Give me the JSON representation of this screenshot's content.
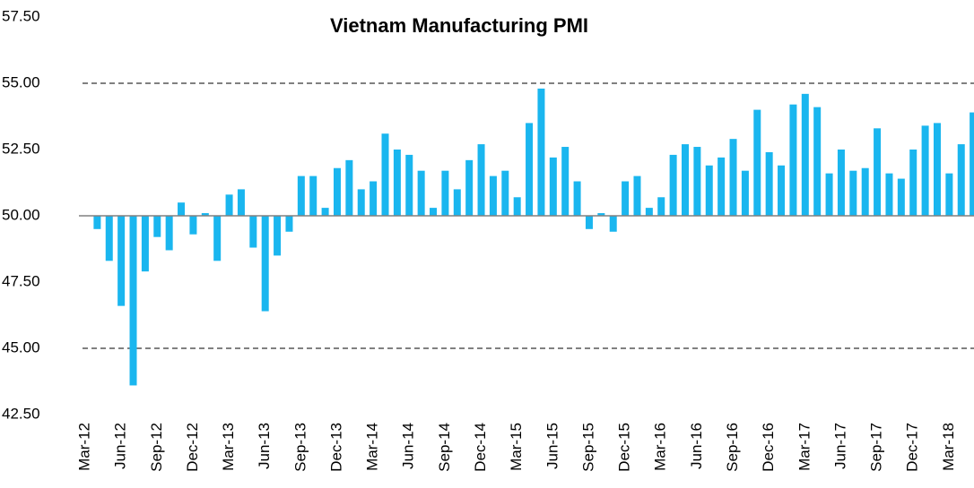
{
  "chart_data": {
    "type": "bar",
    "title": "Vietnam Manufacturing PMI",
    "color": "#1ab6ef",
    "categories": [
      "Mar-12",
      null,
      null,
      "Jun-12",
      null,
      null,
      "Sep-12",
      null,
      null,
      "Dec-12",
      null,
      null,
      "Mar-13",
      null,
      null,
      "Jun-13",
      null,
      null,
      "Sep-13",
      null,
      null,
      "Dec-13",
      null,
      null,
      "Mar-14",
      null,
      null,
      "Jun-14",
      null,
      null,
      "Sep-14",
      null,
      null,
      "Dec-14",
      null,
      null,
      "Mar-15",
      null,
      null,
      "Jun-15",
      null,
      null,
      "Sep-15",
      null,
      null,
      "Dec-15",
      null,
      null,
      "Mar-16",
      null,
      null,
      "Jun-16",
      null,
      null,
      "Sep-16",
      null,
      null,
      "Dec-16",
      null,
      null,
      "Mar-17",
      null,
      null,
      "Jun-17",
      null,
      null,
      "Sep-17",
      null,
      null,
      "Dec-17",
      null,
      null,
      "Mar-18",
      null,
      null
    ],
    "values": [
      null,
      49.5,
      48.3,
      46.6,
      43.6,
      47.9,
      49.2,
      48.7,
      50.5,
      49.3,
      50.1,
      48.3,
      50.8,
      51.0,
      48.8,
      46.4,
      48.5,
      49.4,
      51.5,
      51.5,
      50.3,
      51.8,
      52.1,
      51.0,
      51.3,
      53.1,
      52.5,
      52.3,
      51.7,
      50.3,
      51.7,
      51.0,
      52.1,
      52.7,
      51.5,
      51.7,
      50.7,
      53.5,
      54.8,
      52.2,
      52.6,
      51.3,
      49.5,
      50.1,
      49.4,
      51.3,
      51.5,
      50.3,
      50.7,
      52.3,
      52.7,
      52.6,
      51.9,
      52.2,
      52.9,
      51.7,
      54.0,
      52.4,
      51.9,
      54.2,
      54.6,
      54.1,
      51.6,
      52.5,
      51.7,
      51.8,
      53.3,
      51.6,
      51.4,
      52.5,
      53.4,
      53.5,
      51.6,
      52.7,
      53.9
    ],
    "ylim": [
      42.5,
      57.5
    ],
    "yticks": [
      {
        "value": 42.5,
        "label": "42.50"
      },
      {
        "value": 45,
        "label": "45.00"
      },
      {
        "value": 47.5,
        "label": "47.50"
      },
      {
        "value": 50,
        "label": "50.00"
      },
      {
        "value": 52.5,
        "label": "52.50"
      },
      {
        "value": 55,
        "label": "55.00"
      },
      {
        "value": 57.5,
        "label": "57.50"
      }
    ],
    "y_axis_crosses": 50,
    "reference_lines": [
      55,
      45
    ]
  }
}
